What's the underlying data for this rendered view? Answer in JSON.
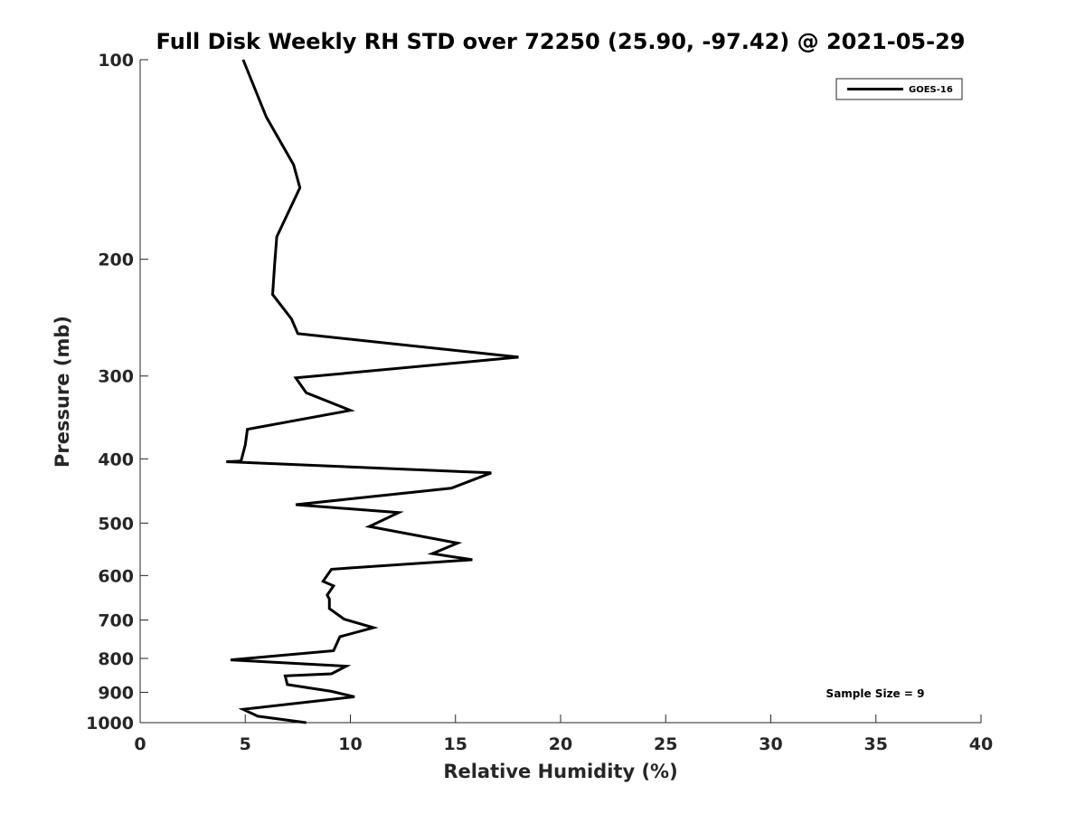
{
  "chart_data": {
    "type": "line",
    "title": "Full Disk Weekly RH STD over 72250 (25.90, -97.42) @ 2021-05-29",
    "xlabel": "Relative Humidity (%)",
    "ylabel": "Pressure (mb)",
    "xlim": [
      0,
      40
    ],
    "ylim": [
      100,
      1000
    ],
    "yscale": "log",
    "yreversed": true,
    "xticks": [
      0,
      5,
      10,
      15,
      20,
      25,
      30,
      35,
      40
    ],
    "yticks": [
      100,
      200,
      300,
      400,
      500,
      600,
      700,
      800,
      900,
      1000
    ],
    "grid": false,
    "legend_position": "top-right",
    "series": [
      {
        "name": "GOES-16",
        "color": "#000000",
        "x": [
          4.9,
          6.0,
          7.3,
          7.6,
          6.5,
          6.4,
          6.3,
          7.2,
          7.5,
          18.0,
          7.4,
          7.9,
          10.0,
          5.1,
          5.0,
          4.8,
          4.1,
          16.7,
          14.8,
          7.4,
          12.3,
          10.9,
          15.1,
          13.9,
          15.8,
          9.1,
          8.7,
          9.2,
          8.9,
          9.0,
          9.0,
          9.0,
          9.7,
          11.1,
          9.5,
          9.2,
          4.3,
          9.8,
          9.1,
          6.9,
          7.0,
          9.1,
          10.2,
          4.9,
          5.6,
          7.9
        ],
        "y": [
          100,
          122,
          144,
          156,
          185,
          203,
          226,
          246,
          259,
          281,
          302,
          318,
          338,
          361,
          381,
          403,
          404,
          420,
          443,
          469,
          482,
          506,
          536,
          556,
          568,
          587,
          612,
          622,
          642,
          651,
          667,
          673,
          698,
          719,
          742,
          779,
          804,
          822,
          844,
          850,
          876,
          897,
          914,
          955,
          978,
          1000
        ]
      }
    ],
    "annotation": "Sample Size = 9"
  }
}
